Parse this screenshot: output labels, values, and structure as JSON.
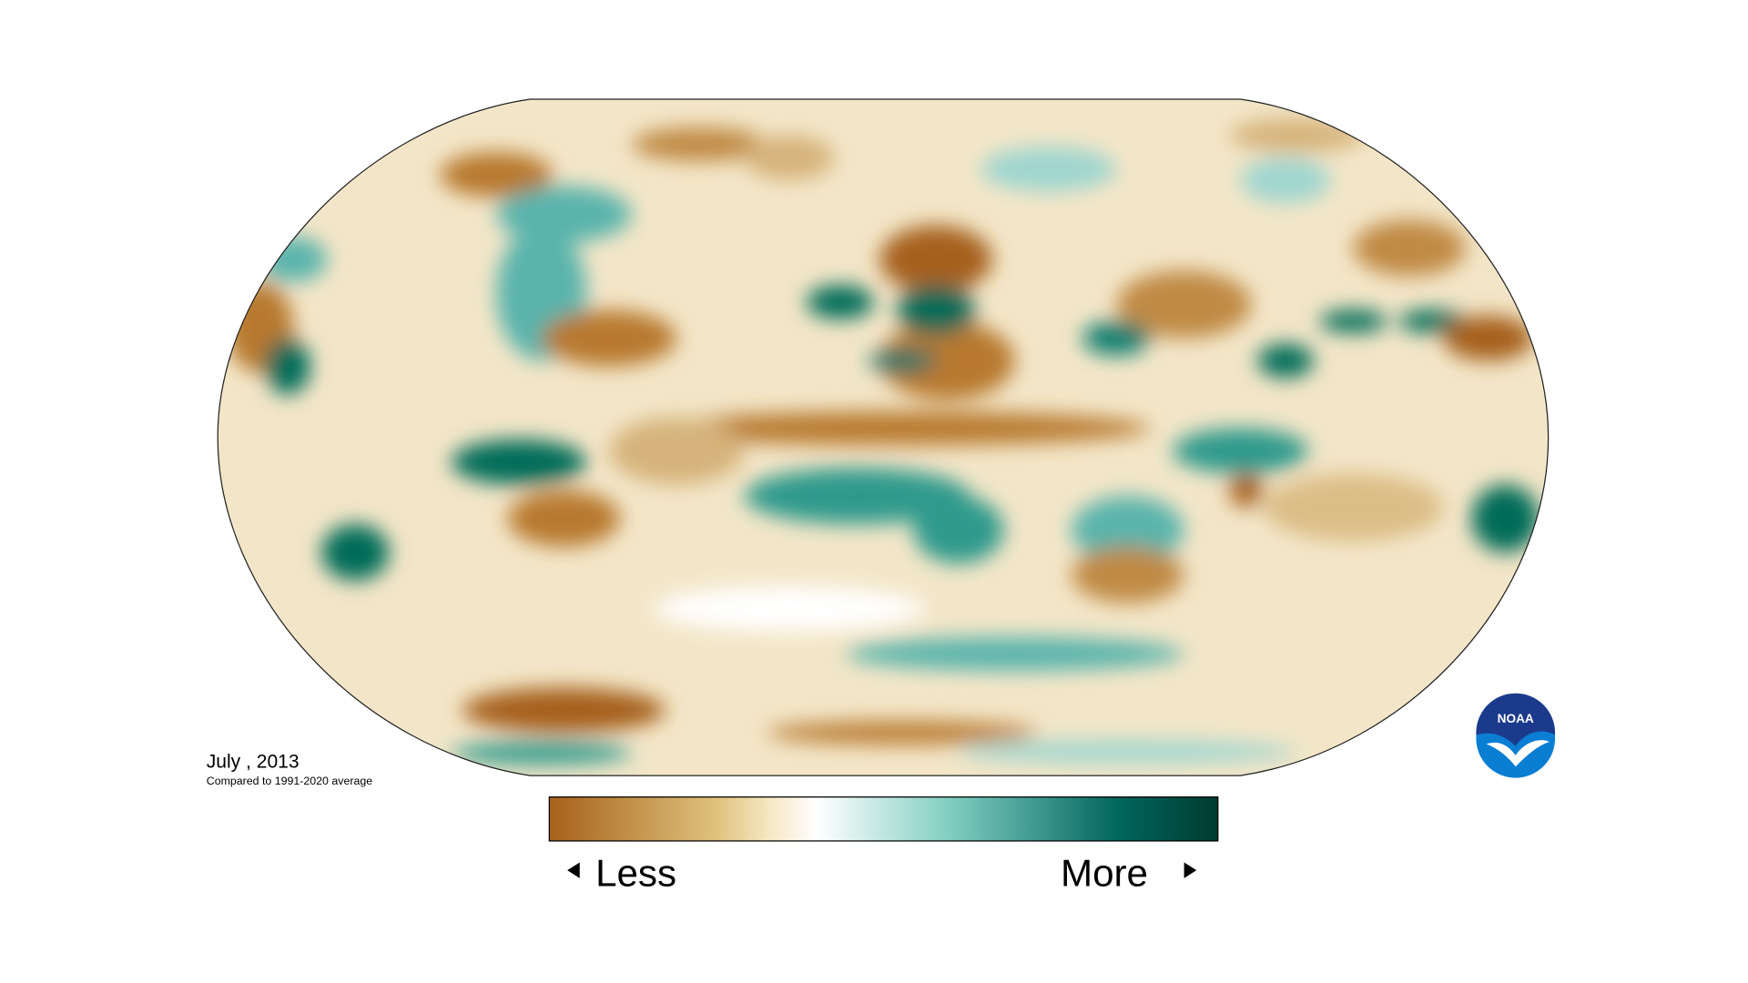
{
  "map": {
    "date": "July , 2013",
    "subtitle": "Compared to 1991-2020 average",
    "legend": {
      "low": "Less",
      "high": "More"
    },
    "logo": "NOAA"
  }
}
